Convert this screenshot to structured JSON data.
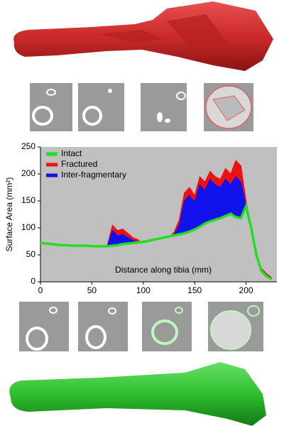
{
  "chart_data": {
    "type": "area",
    "xlabel": "Distance along tibia (mm)",
    "ylabel": "Surface Area (mm²)",
    "x": [
      0,
      5,
      10,
      15,
      20,
      25,
      30,
      35,
      40,
      45,
      50,
      55,
      60,
      65,
      70,
      75,
      80,
      85,
      90,
      95,
      100,
      105,
      110,
      115,
      120,
      125,
      130,
      135,
      140,
      145,
      150,
      155,
      160,
      165,
      170,
      175,
      180,
      185,
      190,
      195,
      200,
      205,
      210,
      215,
      220,
      225
    ],
    "series": [
      {
        "name": "Intact",
        "color": "#22dd22",
        "values": [
          72,
          71,
          70,
          69,
          68,
          68,
          67,
          67,
          67,
          67,
          66,
          66,
          66,
          66,
          67,
          68,
          70,
          71,
          72,
          73,
          74,
          76,
          78,
          80,
          82,
          84,
          86,
          88,
          90,
          93,
          97,
          102,
          108,
          112,
          115,
          118,
          122,
          126,
          120,
          118,
          140,
          100,
          50,
          20,
          10,
          5
        ]
      },
      {
        "name": "Fractured",
        "color": "#ee1111",
        "values": [
          73,
          71,
          70,
          70,
          69,
          68,
          68,
          67,
          67,
          67,
          66,
          66,
          66,
          67,
          105,
          95,
          98,
          90,
          82,
          78,
          68,
          65,
          75,
          70,
          78,
          82,
          92,
          115,
          165,
          175,
          160,
          195,
          185,
          205,
          195,
          190,
          210,
          200,
          225,
          215,
          150,
          100,
          50,
          25,
          15,
          8
        ]
      },
      {
        "name": "Inter-fragmentary",
        "color": "#1111ee",
        "values": [
          72,
          71,
          70,
          69,
          68,
          68,
          67,
          67,
          67,
          67,
          66,
          66,
          66,
          66,
          95,
          85,
          88,
          82,
          77,
          74,
          66,
          63,
          72,
          68,
          75,
          80,
          88,
          105,
          150,
          160,
          148,
          180,
          170,
          190,
          180,
          175,
          190,
          180,
          195,
          185,
          140,
          95,
          48,
          22,
          12,
          6
        ]
      }
    ],
    "xlim": [
      0,
      230
    ],
    "xticks": [
      0,
      50,
      100,
      150,
      200
    ],
    "ylim": [
      0,
      250
    ],
    "yticks": [
      0,
      50,
      100,
      150,
      200,
      250
    ],
    "legend": "top-left"
  }
}
